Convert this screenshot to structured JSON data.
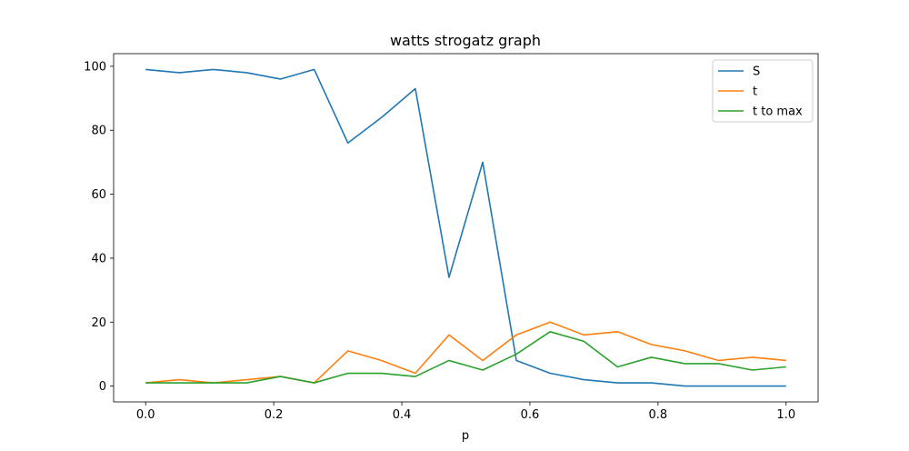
{
  "chart_data": {
    "type": "line",
    "title": "watts strogatz graph",
    "xlabel": "p",
    "ylabel": "",
    "xlim": [
      -0.05,
      1.05
    ],
    "ylim": [
      -4.95,
      103.95
    ],
    "xticks": [
      0.0,
      0.2,
      0.4,
      0.6,
      0.8,
      1.0
    ],
    "xtick_labels": [
      "0.0",
      "0.2",
      "0.4",
      "0.6",
      "0.8",
      "1.0"
    ],
    "yticks": [
      0,
      20,
      40,
      60,
      80,
      100
    ],
    "ytick_labels": [
      "0",
      "20",
      "40",
      "60",
      "80",
      "100"
    ],
    "grid": false,
    "legend_position": "top-right",
    "x": [
      0.0,
      0.0526,
      0.1053,
      0.1579,
      0.2105,
      0.2632,
      0.3158,
      0.3684,
      0.4211,
      0.4737,
      0.5263,
      0.5789,
      0.6316,
      0.6842,
      0.7368,
      0.7895,
      0.8421,
      0.8947,
      0.9474,
      1.0
    ],
    "series": [
      {
        "name": "S",
        "color": "#1f77b4",
        "values": [
          99,
          98,
          99,
          98,
          96,
          99,
          76,
          84,
          93,
          34,
          70,
          8,
          4,
          2,
          1,
          1,
          0,
          0,
          0,
          0
        ]
      },
      {
        "name": "t",
        "color": "#ff7f0e",
        "values": [
          1,
          2,
          1,
          2,
          3,
          1,
          11,
          8,
          4,
          16,
          8,
          16,
          20,
          16,
          17,
          13,
          11,
          8,
          9,
          8
        ]
      },
      {
        "name": "t to max",
        "color": "#2ca02c",
        "values": [
          1,
          1,
          1,
          1,
          3,
          1,
          4,
          4,
          3,
          8,
          5,
          10,
          17,
          14,
          6,
          9,
          7,
          7,
          5,
          6
        ]
      }
    ]
  }
}
